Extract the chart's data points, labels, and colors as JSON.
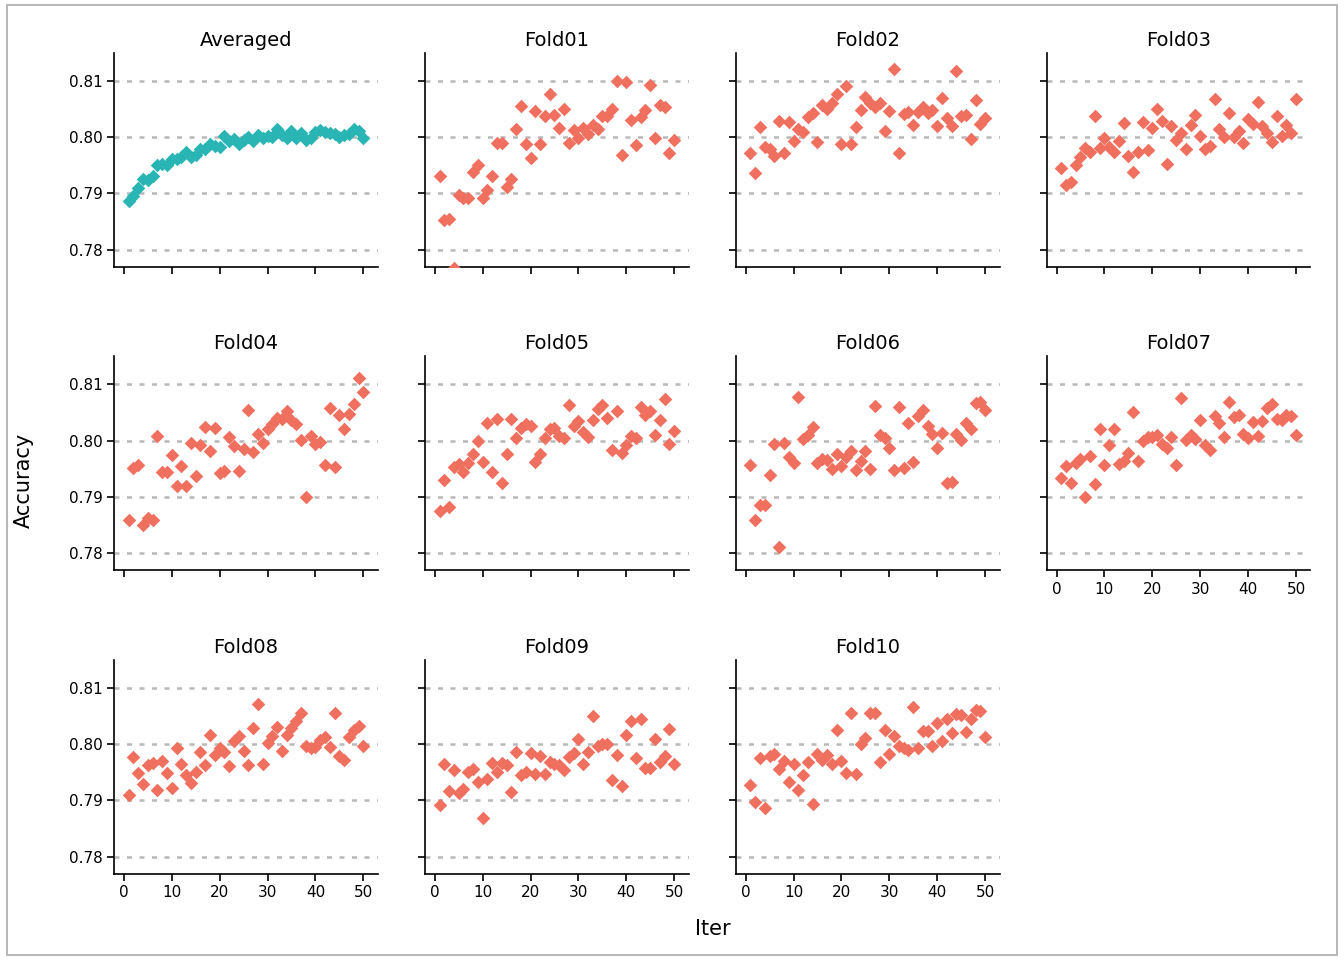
{
  "panels": [
    {
      "name": "Averaged",
      "color": "#2ab5b5",
      "row": 0,
      "col": 0
    },
    {
      "name": "Fold01",
      "color": "#f07060",
      "row": 0,
      "col": 1
    },
    {
      "name": "Fold02",
      "color": "#f07060",
      "row": 0,
      "col": 2
    },
    {
      "name": "Fold03",
      "color": "#f07060",
      "row": 0,
      "col": 3
    },
    {
      "name": "Fold04",
      "color": "#f07060",
      "row": 1,
      "col": 0
    },
    {
      "name": "Fold05",
      "color": "#f07060",
      "row": 1,
      "col": 1
    },
    {
      "name": "Fold06",
      "color": "#f07060",
      "row": 1,
      "col": 2
    },
    {
      "name": "Fold07",
      "color": "#f07060",
      "row": 1,
      "col": 3
    },
    {
      "name": "Fold08",
      "color": "#f07060",
      "row": 2,
      "col": 0
    },
    {
      "name": "Fold09",
      "color": "#f07060",
      "row": 2,
      "col": 1
    },
    {
      "name": "Fold10",
      "color": "#f07060",
      "row": 2,
      "col": 2
    }
  ],
  "ylim": [
    0.777,
    0.815
  ],
  "yticks": [
    0.78,
    0.79,
    0.8,
    0.81
  ],
  "ytick_labels": [
    "0.78",
    "0.79",
    "0.80",
    "0.81"
  ],
  "xlim": [
    -2,
    53
  ],
  "xticks": [
    0,
    10,
    20,
    30,
    40,
    50
  ],
  "n_iter": 50,
  "ylabel": "Accuracy",
  "xlabel": "Iter",
  "background_color": "#ffffff",
  "grid_color": "#b8b8b8",
  "title_fontsize": 14,
  "label_fontsize": 14,
  "tick_fontsize": 11,
  "marker_size": 48,
  "marker": "D",
  "border_color": "#aaaaaa",
  "border_lw": 1.2
}
